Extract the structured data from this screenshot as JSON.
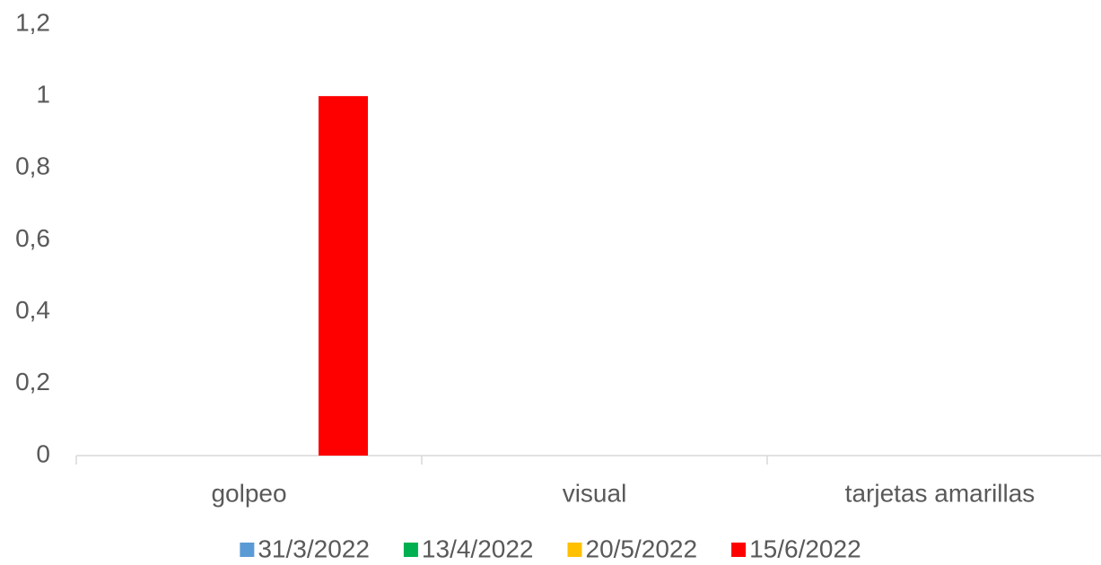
{
  "chart_data": {
    "type": "bar",
    "categories": [
      "golpeo",
      "visual",
      "tarjetas amarillas"
    ],
    "series": [
      {
        "name": "31/3/2022",
        "color": "#5b9bd5",
        "values": [
          0,
          0,
          0
        ]
      },
      {
        "name": "13/4/2022",
        "color": "#00b050",
        "values": [
          0,
          0,
          0
        ]
      },
      {
        "name": "20/5/2022",
        "color": "#ffc000",
        "values": [
          0,
          0,
          0
        ]
      },
      {
        "name": "15/6/2022",
        "color": "#ff0000",
        "values": [
          1,
          0,
          0
        ]
      }
    ],
    "ylim": [
      0,
      1.2
    ],
    "yticks": [
      0,
      {
        "value": 0.2,
        "label": "0,2"
      },
      {
        "value": 0.4,
        "label": "0,4"
      },
      {
        "value": 0.6,
        "label": "0,6"
      },
      {
        "value": 0.8,
        "label": "0,8"
      },
      1,
      {
        "value": 1.2,
        "label": "1,2"
      }
    ],
    "grid": false,
    "legend": "bottom"
  }
}
